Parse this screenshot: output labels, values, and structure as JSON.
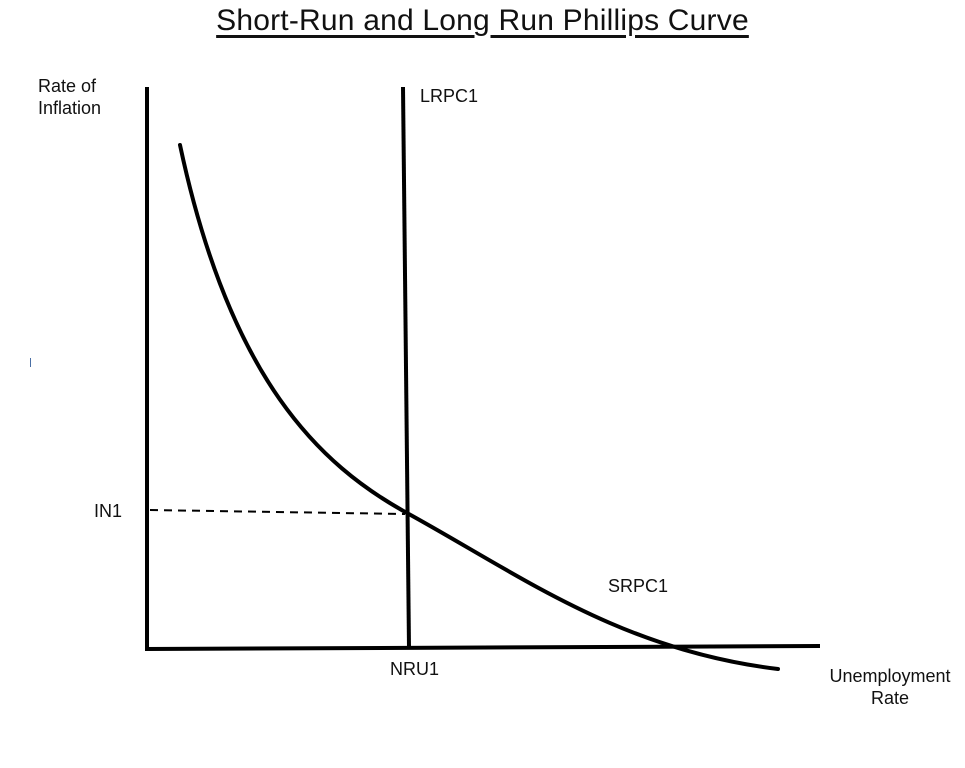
{
  "title": "Short-Run and Long Run Phillips Curve",
  "axes": {
    "y_label": "Rate of Inflation",
    "x_label": "Unemployment Rate"
  },
  "labels": {
    "in1": "IN1",
    "nru1": "NRU1",
    "lrpc1": "LRPC1",
    "srpc1": "SRPC1"
  },
  "colors": {
    "line": "#000000",
    "background": "#ffffff"
  }
}
